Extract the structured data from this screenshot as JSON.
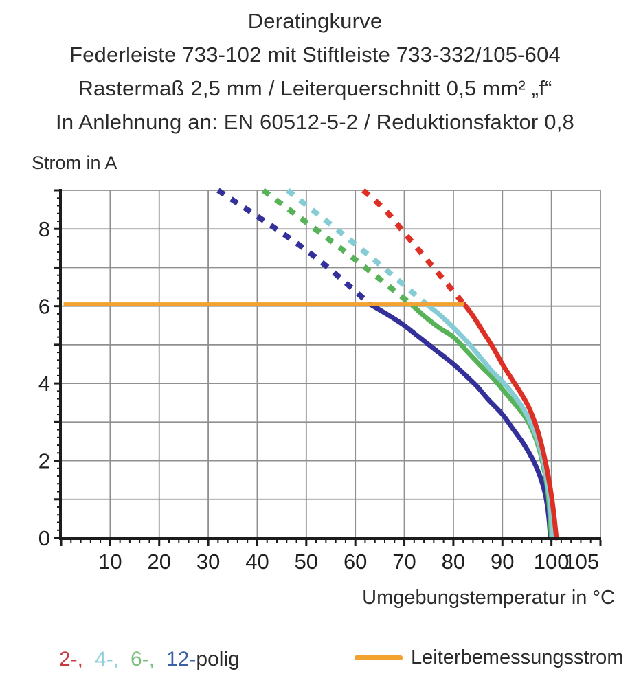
{
  "header": {
    "title": "Deratingkurve",
    "subtitle_lines": [
      "Federleiste 733-102 mit Stiftleiste 733-332/105-604",
      "Rastermaß 2,5 mm / Leiterquerschnitt 0,5 mm² „f“",
      "In Anlehnung an: EN 60512-5-2 / Reduktionsfaktor 0,8"
    ]
  },
  "chart_data": {
    "type": "line",
    "title": "Deratingkurve",
    "ylabel": "Strom in A",
    "xlabel": "Umgebungstemperatur in °C",
    "xlim": [
      0,
      110
    ],
    "ylim": [
      0,
      9
    ],
    "x_gridlines": [
      10,
      20,
      30,
      40,
      50,
      60,
      70,
      80,
      90,
      100,
      110
    ],
    "y_gridlines": [
      1,
      2,
      3,
      4,
      5,
      6,
      7,
      8,
      9
    ],
    "x_minor_step": 2,
    "y_minor_step": 0.2,
    "x_ticks": [
      {
        "v": 10,
        "label": "10"
      },
      {
        "v": 20,
        "label": "20"
      },
      {
        "v": 30,
        "label": "30"
      },
      {
        "v": 40,
        "label": "40"
      },
      {
        "v": 50,
        "label": "50"
      },
      {
        "v": 60,
        "label": "60"
      },
      {
        "v": 70,
        "label": "70"
      },
      {
        "v": 80,
        "label": "80"
      },
      {
        "v": 90,
        "label": "90"
      },
      {
        "v": 100,
        "label": "100"
      },
      {
        "v": 105,
        "label": "105",
        "dx": 8
      }
    ],
    "y_ticks": [
      {
        "v": 0,
        "label": "0"
      },
      {
        "v": 2,
        "label": "2"
      },
      {
        "v": 4,
        "label": "4"
      },
      {
        "v": 6,
        "label": "6"
      },
      {
        "v": 8,
        "label": "8"
      }
    ],
    "grid_color": "#8f8f8f",
    "axis_color": "#1c1c1c",
    "reference_line": {
      "label": "Leiterbemessungsstrom",
      "color": "#f3a12f",
      "y": 6.05,
      "x_start": 0.5,
      "x_end": 82.2
    },
    "series": [
      {
        "name": "12-polig",
        "color": "#33309a",
        "dashed": [
          [
            32.0,
            9.0
          ],
          [
            50.0,
            7.45
          ],
          [
            63.0,
            6.05
          ]
        ],
        "solid": [
          [
            63.0,
            6.05
          ],
          [
            67,
            5.75
          ],
          [
            70,
            5.5
          ],
          [
            73,
            5.2
          ],
          [
            76,
            4.9
          ],
          [
            80,
            4.5
          ],
          [
            83,
            4.15
          ],
          [
            85,
            3.9
          ],
          [
            87,
            3.6
          ],
          [
            90,
            3.2
          ],
          [
            92,
            2.85
          ],
          [
            94,
            2.5
          ],
          [
            95,
            2.3
          ],
          [
            96.5,
            1.95
          ],
          [
            97.8,
            1.55
          ],
          [
            98.8,
            1.1
          ],
          [
            99.4,
            0.6
          ],
          [
            99.8,
            0
          ]
        ]
      },
      {
        "name": "6-polig",
        "color": "#58b358",
        "dashed": [
          [
            41.2,
            9.0
          ],
          [
            57.0,
            7.5
          ],
          [
            71.4,
            6.05
          ]
        ],
        "solid": [
          [
            71.4,
            6.05
          ],
          [
            74,
            5.75
          ],
          [
            77,
            5.45
          ],
          [
            80,
            5.2
          ],
          [
            83,
            4.8
          ],
          [
            86,
            4.4
          ],
          [
            88,
            4.15
          ],
          [
            90,
            3.85
          ],
          [
            92,
            3.55
          ],
          [
            94,
            3.25
          ],
          [
            95.5,
            2.95
          ],
          [
            97,
            2.5
          ],
          [
            98.2,
            1.95
          ],
          [
            99.1,
            1.35
          ],
          [
            99.6,
            0.75
          ],
          [
            100.0,
            0
          ]
        ]
      },
      {
        "name": "4-polig",
        "color": "#85ccd4",
        "dashed": [
          [
            46.2,
            9.0
          ],
          [
            61.0,
            7.5
          ],
          [
            74.5,
            6.05
          ]
        ],
        "solid": [
          [
            74.5,
            6.05
          ],
          [
            77,
            5.8
          ],
          [
            80,
            5.45
          ],
          [
            83,
            5.05
          ],
          [
            86,
            4.6
          ],
          [
            88,
            4.3
          ],
          [
            90,
            4.05
          ],
          [
            92,
            3.75
          ],
          [
            94,
            3.4
          ],
          [
            95.5,
            3.05
          ],
          [
            97,
            2.6
          ],
          [
            98.2,
            2.05
          ],
          [
            99.2,
            1.4
          ],
          [
            99.8,
            0.8
          ],
          [
            100.2,
            0
          ]
        ]
      },
      {
        "name": "2-polig",
        "color": "#dd2f23",
        "dashed": [
          [
            61.6,
            9.0
          ],
          [
            66.0,
            8.5
          ],
          [
            70.0,
            7.9
          ],
          [
            82.2,
            6.05
          ]
        ],
        "solid": [
          [
            82.2,
            6.05
          ],
          [
            84,
            5.75
          ],
          [
            86,
            5.35
          ],
          [
            88,
            4.95
          ],
          [
            90,
            4.5
          ],
          [
            92,
            4.1
          ],
          [
            94,
            3.7
          ],
          [
            95.5,
            3.35
          ],
          [
            97,
            2.85
          ],
          [
            98.2,
            2.3
          ],
          [
            99.2,
            1.7
          ],
          [
            100,
            1.1
          ],
          [
            100.6,
            0.5
          ],
          [
            101.0,
            0
          ]
        ]
      }
    ]
  },
  "legend": {
    "pole_items": [
      {
        "text": "2-,",
        "color": "#c73b40"
      },
      {
        "text": "4-,",
        "color": "#8ed0d8"
      },
      {
        "text": "6-,",
        "color": "#7cbe7c"
      },
      {
        "text": "12-",
        "color": "#3a60a8"
      },
      {
        "text": "polig",
        "color": "#2b2b2b"
      }
    ],
    "reference": {
      "label": "Leiterbemessungsstrom",
      "color": "#f3a12f"
    }
  }
}
